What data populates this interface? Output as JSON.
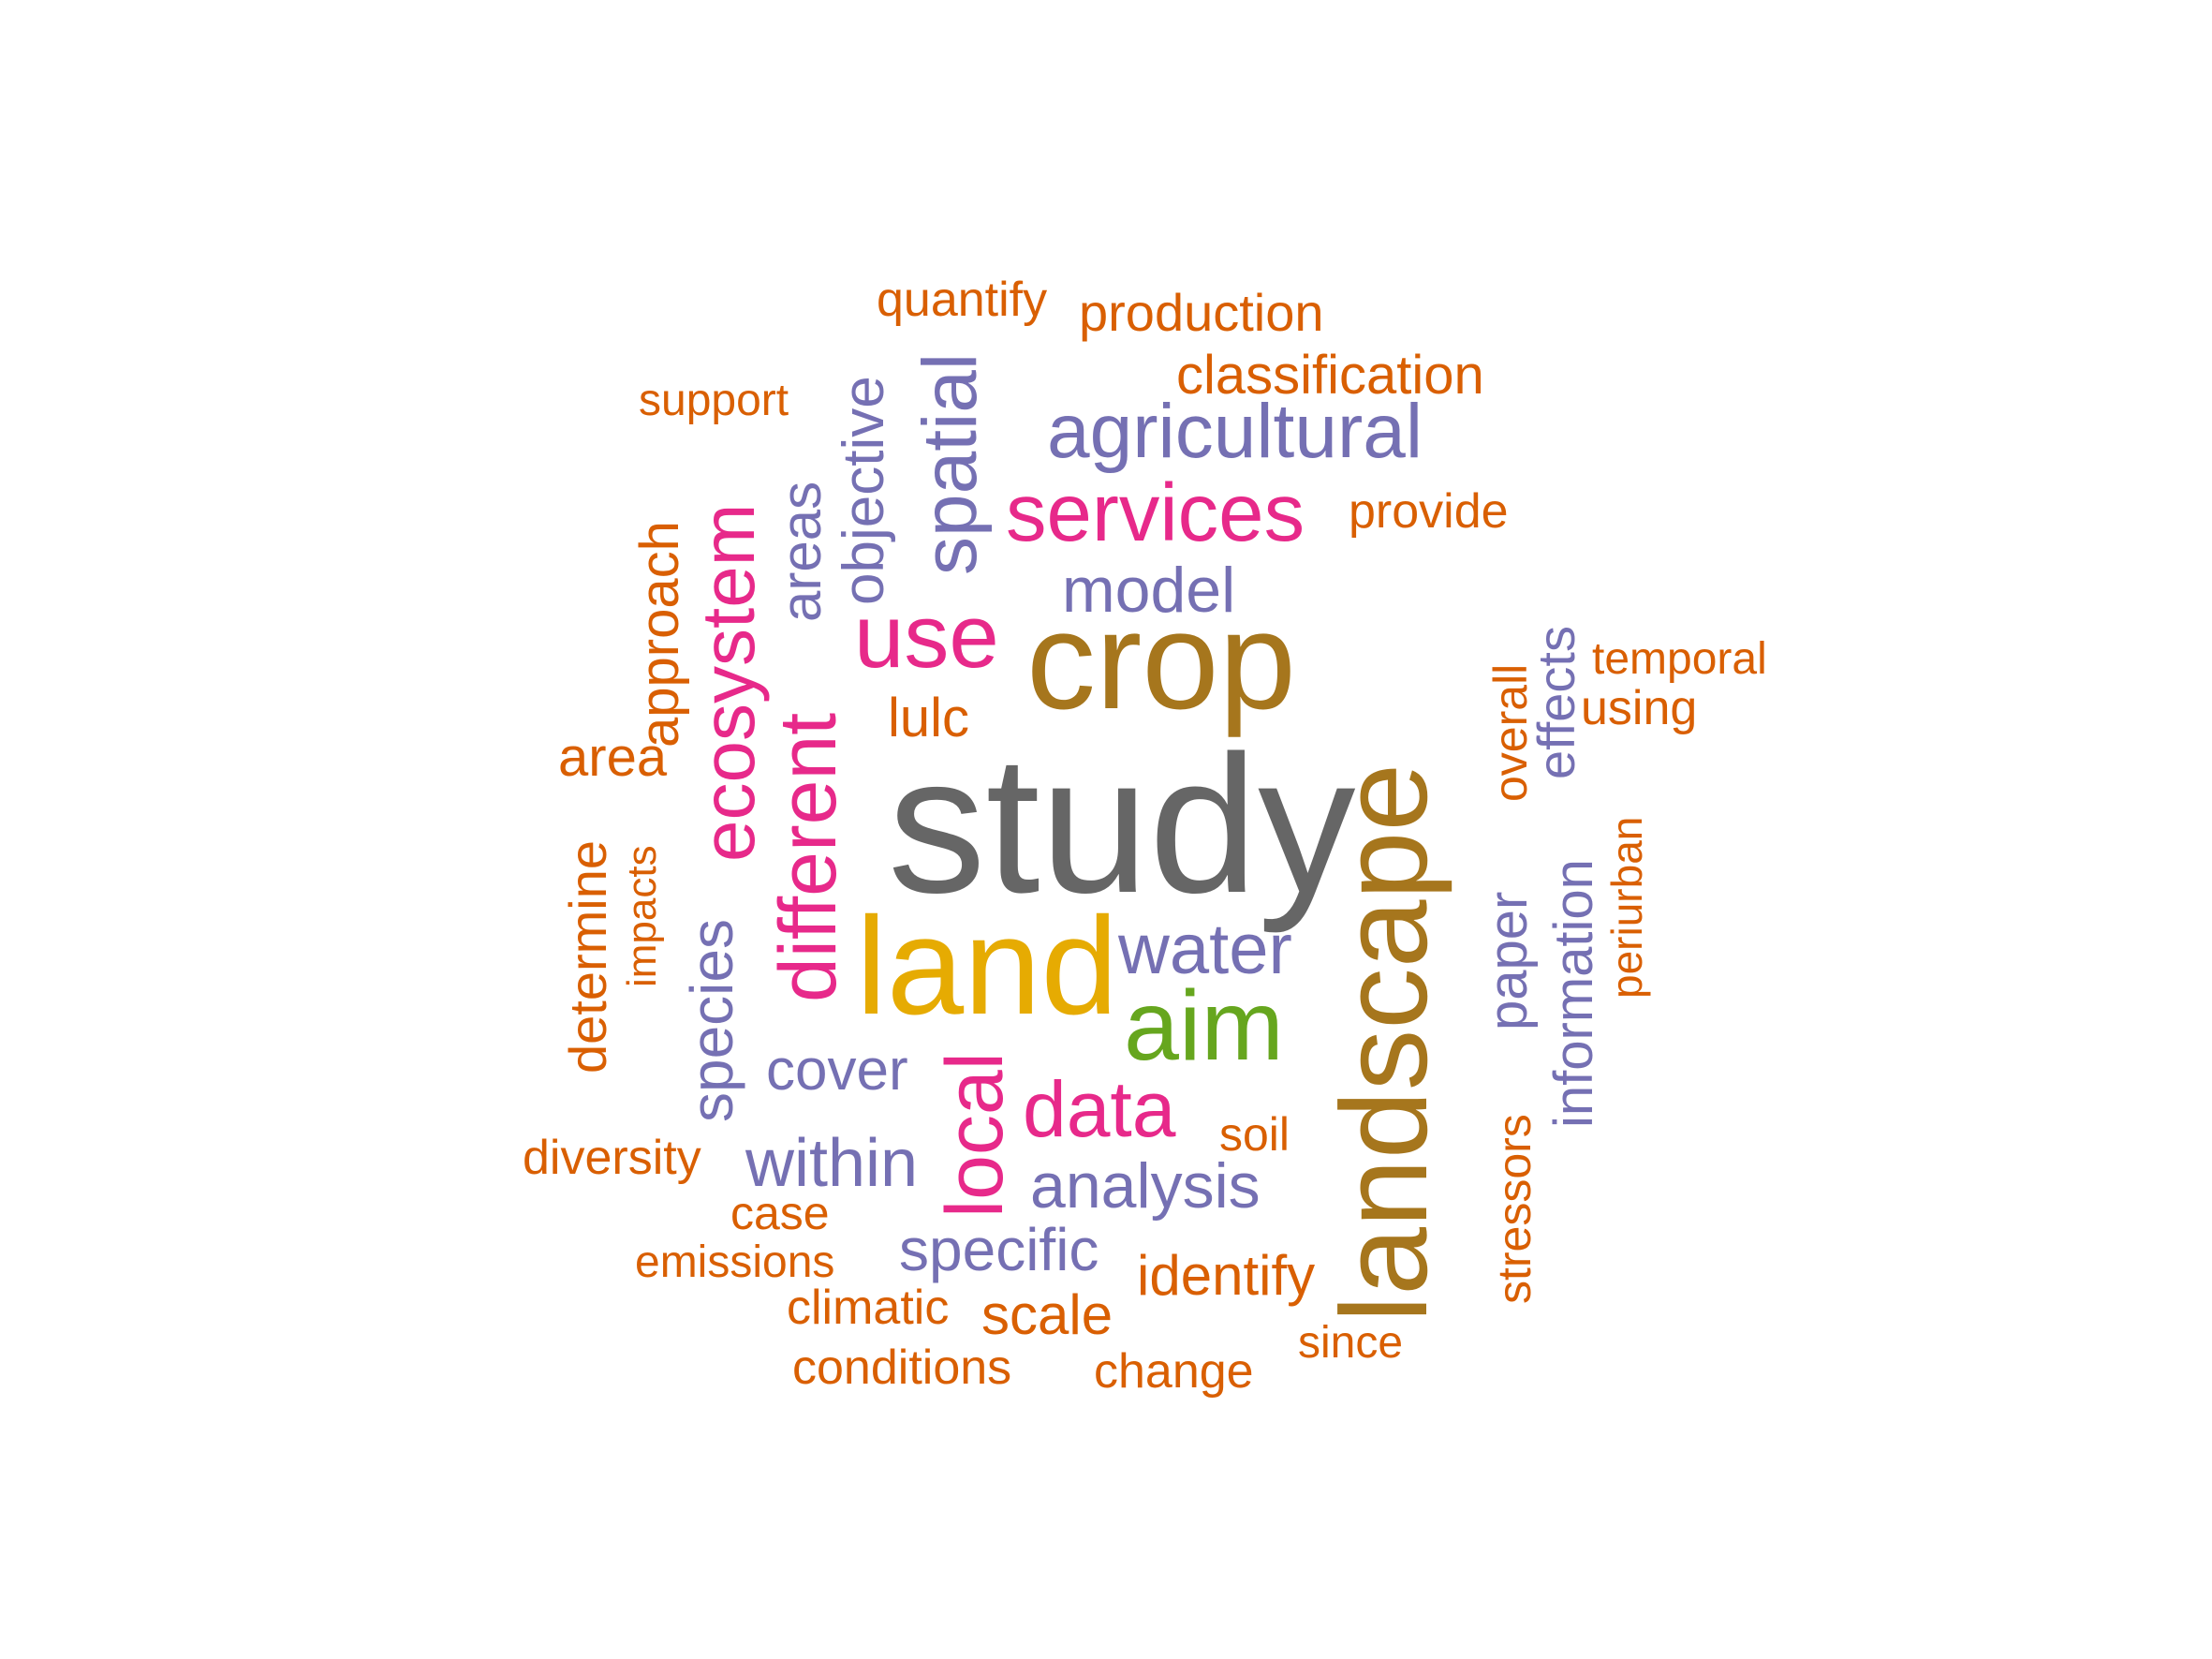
{
  "palette": {
    "orange": "#d95f02",
    "purple": "#7570b3",
    "magenta": "#e7298a",
    "green": "#66a61e",
    "gold": "#e6ab02",
    "brown": "#a6761d",
    "gray": "#666666"
  },
  "words": [
    {
      "text": "study",
      "color": "gray"
    },
    {
      "text": "landscape",
      "color": "brown"
    },
    {
      "text": "crop",
      "color": "brown"
    },
    {
      "text": "land",
      "color": "gold"
    },
    {
      "text": "aim",
      "color": "green"
    },
    {
      "text": "use",
      "color": "magenta"
    },
    {
      "text": "services",
      "color": "magenta"
    },
    {
      "text": "ecosystem",
      "color": "magenta"
    },
    {
      "text": "different",
      "color": "magenta"
    },
    {
      "text": "data",
      "color": "magenta"
    },
    {
      "text": "local",
      "color": "magenta"
    },
    {
      "text": "agricultural",
      "color": "purple"
    },
    {
      "text": "spatial",
      "color": "purple"
    },
    {
      "text": "model",
      "color": "purple"
    },
    {
      "text": "water",
      "color": "purple"
    },
    {
      "text": "within",
      "color": "purple"
    },
    {
      "text": "analysis",
      "color": "purple"
    },
    {
      "text": "specific",
      "color": "purple"
    },
    {
      "text": "cover",
      "color": "purple"
    },
    {
      "text": "species",
      "color": "purple"
    },
    {
      "text": "areas",
      "color": "purple"
    },
    {
      "text": "objective",
      "color": "purple"
    },
    {
      "text": "information",
      "color": "purple"
    },
    {
      "text": "effects",
      "color": "purple"
    },
    {
      "text": "paper",
      "color": "purple"
    },
    {
      "text": "quantify",
      "color": "orange"
    },
    {
      "text": "production",
      "color": "orange"
    },
    {
      "text": "classification",
      "color": "orange"
    },
    {
      "text": "support",
      "color": "orange"
    },
    {
      "text": "provide",
      "color": "orange"
    },
    {
      "text": "approach",
      "color": "orange"
    },
    {
      "text": "area",
      "color": "orange"
    },
    {
      "text": "lulc",
      "color": "orange"
    },
    {
      "text": "temporal",
      "color": "orange"
    },
    {
      "text": "using",
      "color": "orange"
    },
    {
      "text": "overall",
      "color": "orange"
    },
    {
      "text": "determine",
      "color": "orange"
    },
    {
      "text": "impacts",
      "color": "orange"
    },
    {
      "text": "periurban",
      "color": "orange"
    },
    {
      "text": "diversity",
      "color": "orange"
    },
    {
      "text": "soil",
      "color": "orange"
    },
    {
      "text": "case",
      "color": "orange"
    },
    {
      "text": "emissions",
      "color": "orange"
    },
    {
      "text": "identify",
      "color": "orange"
    },
    {
      "text": "stressors",
      "color": "orange"
    },
    {
      "text": "climatic",
      "color": "orange"
    },
    {
      "text": "scale",
      "color": "orange"
    },
    {
      "text": "since",
      "color": "orange"
    },
    {
      "text": "conditions",
      "color": "orange"
    },
    {
      "text": "change",
      "color": "orange"
    }
  ]
}
